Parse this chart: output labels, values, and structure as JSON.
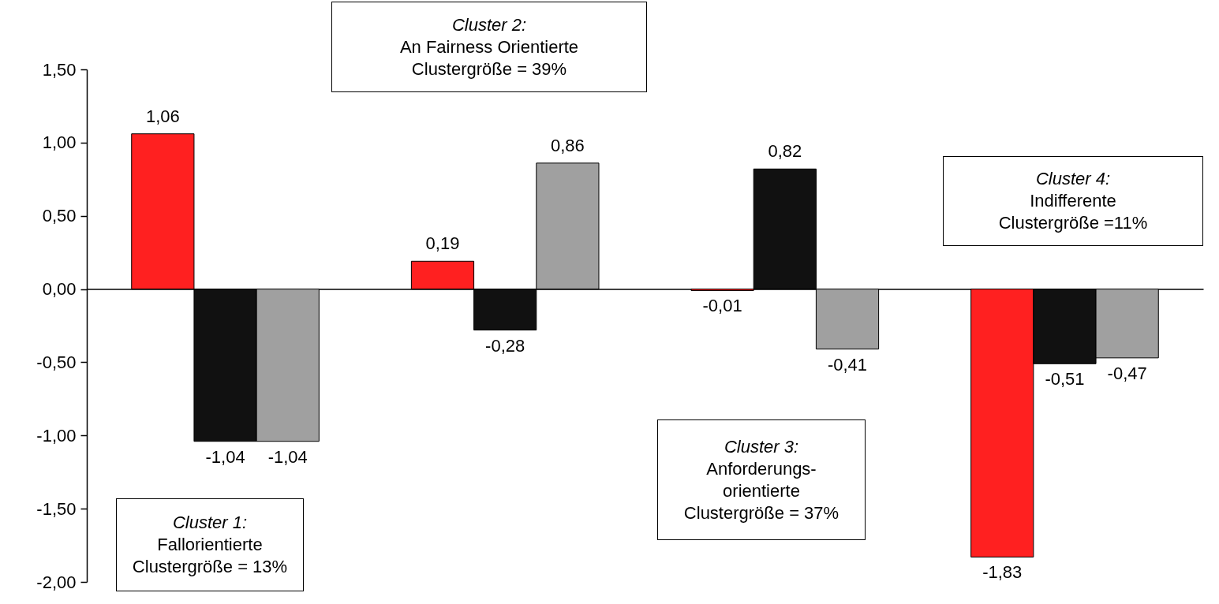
{
  "chart_data": {
    "type": "bar",
    "categories": [
      null,
      null,
      null,
      null
    ],
    "series": [
      {
        "color": "#ff2020",
        "values": [
          1.06,
          0.19,
          -0.01,
          -1.83
        ],
        "value_labels": [
          "1,06",
          "0,19",
          "-0,01",
          "-1,83"
        ]
      },
      {
        "color": "#111111",
        "values": [
          -1.04,
          -0.28,
          0.82,
          -0.51
        ],
        "value_labels": [
          "-1,04",
          "-0,28",
          "0,82",
          "-0,51"
        ]
      },
      {
        "color": "#a0a0a0",
        "values": [
          -1.04,
          0.86,
          -0.41,
          -0.47
        ],
        "value_labels": [
          "-1,04",
          "0,86",
          "-0,41",
          "-0,47"
        ]
      }
    ],
    "ylim": [
      -2,
      1.5
    ],
    "yticks": [
      {
        "value": -2,
        "label": "-2,00"
      },
      {
        "value": -1.5,
        "label": "-1,50"
      },
      {
        "value": -1,
        "label": "-1,00"
      },
      {
        "value": -0.5,
        "label": "-0,50"
      },
      {
        "value": 0,
        "label": "0,00"
      },
      {
        "value": 0.5,
        "label": "0,50"
      },
      {
        "value": 1,
        "label": "1,00"
      },
      {
        "value": 1.5,
        "label": "1,50"
      }
    ],
    "tick_labels": "y",
    "annotations": [
      "Cluster 1:\nFallorientierte\nClustergröße = 13%",
      "Cluster 2:\nAn Fairness Orientierte\nClustergröße = 39%",
      "Cluster 3:\nAnforderungs-\norientierte\nClustergröße = 37%",
      "Cluster 4:\nIndifferente\nClustergröße =11%"
    ]
  }
}
